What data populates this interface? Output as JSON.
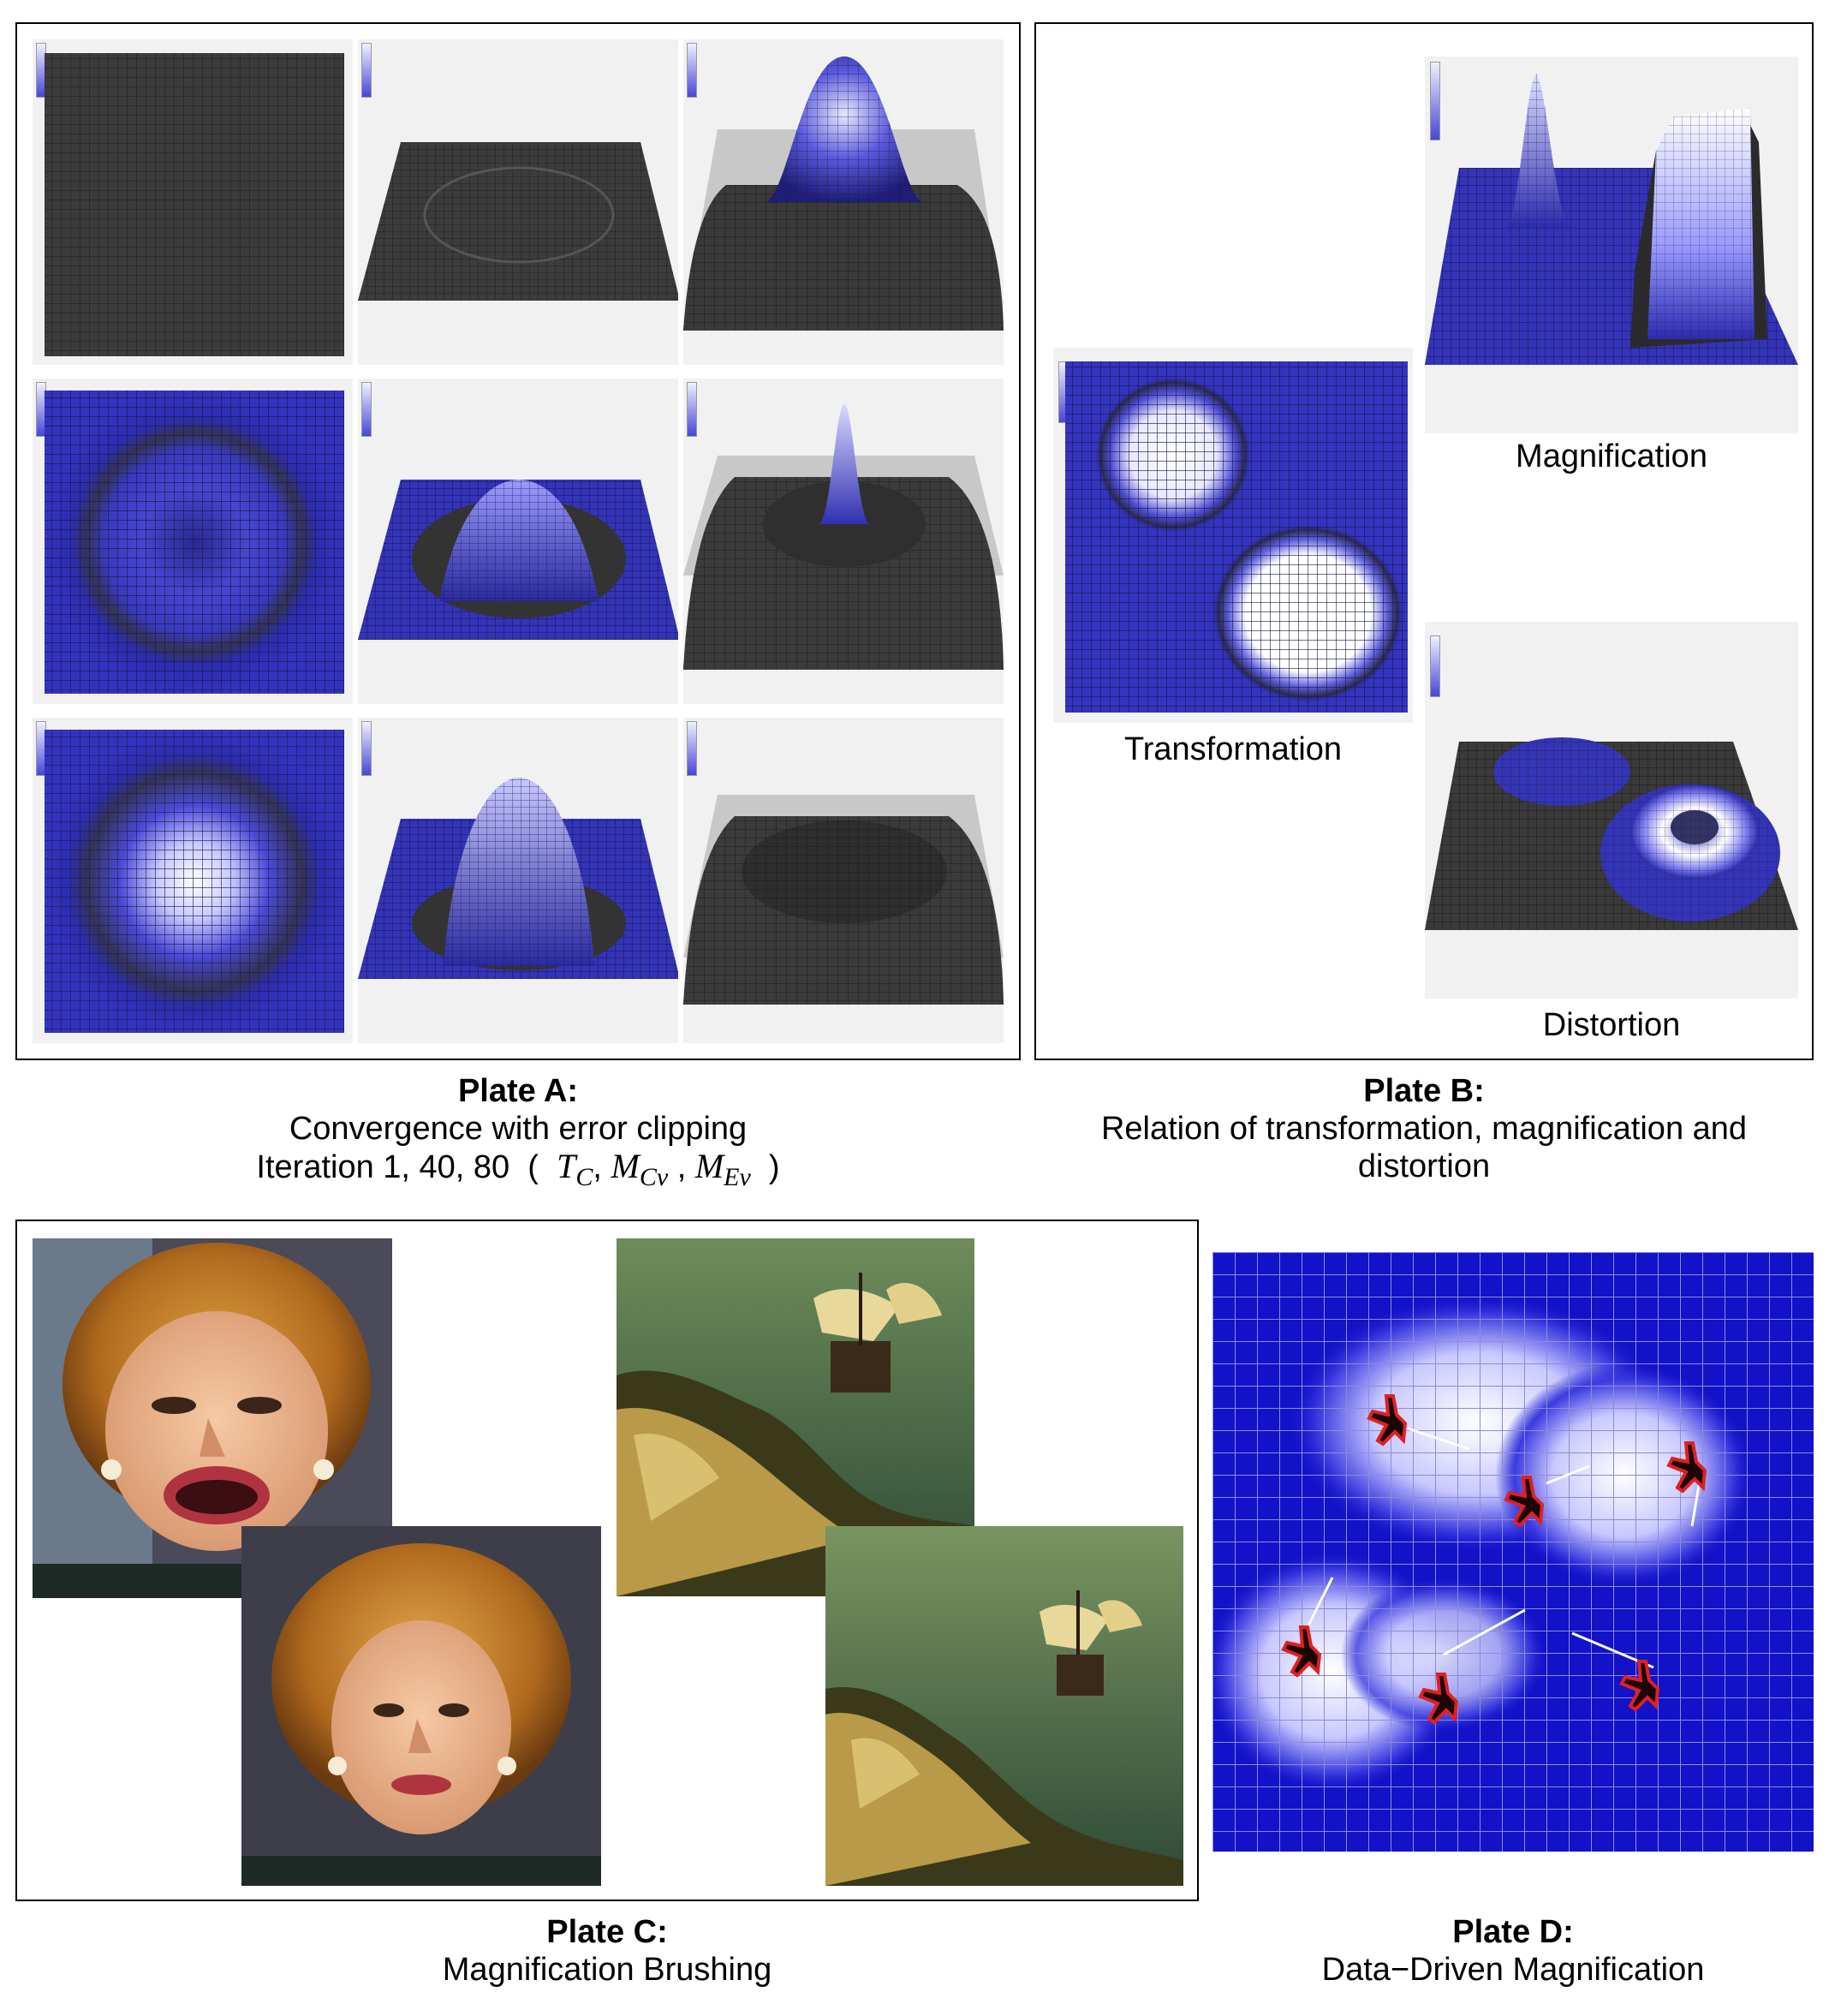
{
  "plate_a": {
    "title": "Plate A:",
    "line1": "Convergence with error clipping",
    "line2_prefix": "Iteration 1, 40, 80",
    "math": {
      "t": "T",
      "t_sub": "C",
      "m1": "M",
      "m1_sub": "Cv",
      "m2": "M",
      "m2_sub": "Ev"
    }
  },
  "plate_b": {
    "title": "Plate B:",
    "line1": "Relation of transformation, magnification and",
    "line2": "distortion",
    "labels": {
      "magnification": "Magnification",
      "transformation": "Transformation",
      "distortion": "Distortion"
    }
  },
  "plate_c": {
    "title": "Plate C:",
    "line1": "Magnification Brushing"
  },
  "plate_d": {
    "title": "Plate D:",
    "line1": "Data−Driven Magnification"
  },
  "colors": {
    "grid_blue": "#2f2fb8",
    "dark_surface": "#3a3a3a",
    "highlight": "#ffffff",
    "tile_bg": "#f1f1f1"
  }
}
